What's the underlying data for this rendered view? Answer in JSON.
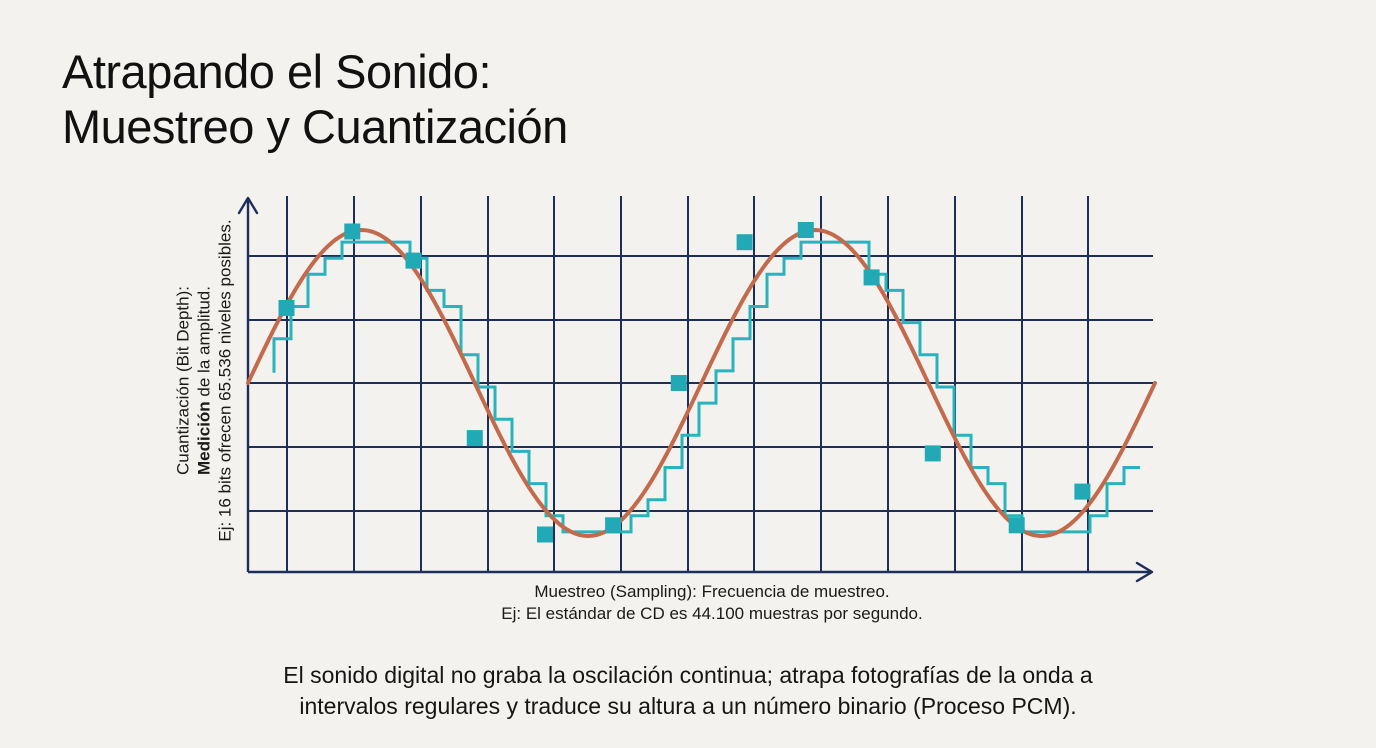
{
  "title": {
    "line1": "Atrapando el Sonido:",
    "line2": "Muestreo y Cuantización"
  },
  "y_axis": {
    "line1": "Cuantización (Bit Depth):",
    "line2_bold": "Medición",
    "line2_rest": " de la amplitud.",
    "line3": "Ej: 16 bits ofrecen 65.536 niveles posibles."
  },
  "x_axis": {
    "line1": "Muestreo (Sampling): Frecuencia de muestreo.",
    "line2": "Ej: El estándar de CD es 44.100 muestras por segundo."
  },
  "caption": {
    "line1": "El sonido digital no graba la oscilación continua; atrapa fotografías de la onda a",
    "line2": "intervalos regulares y traduce su altura a un número binario (Proceso PCM)."
  },
  "chart_data": {
    "type": "line",
    "description_of_signal": "sine",
    "cycles": 2,
    "sample_phases": [
      0.085,
      0.23,
      0.365,
      0.5,
      0.655,
      0.805,
      0.95,
      1.095,
      1.23,
      1.375,
      1.51,
      1.695,
      1.84
    ],
    "sample_values": [
      0.49,
      0.99,
      0.8,
      -0.36,
      -0.99,
      -0.93,
      0.0,
      0.92,
      1.0,
      0.69,
      -0.46,
      -0.93,
      -0.71
    ],
    "quantization_levels": 7,
    "colors": {
      "grid": "#1c2f5a",
      "wave": "#c46a4c",
      "quantized": "#29b4bd",
      "sample_marker": "#21a9b6"
    }
  }
}
